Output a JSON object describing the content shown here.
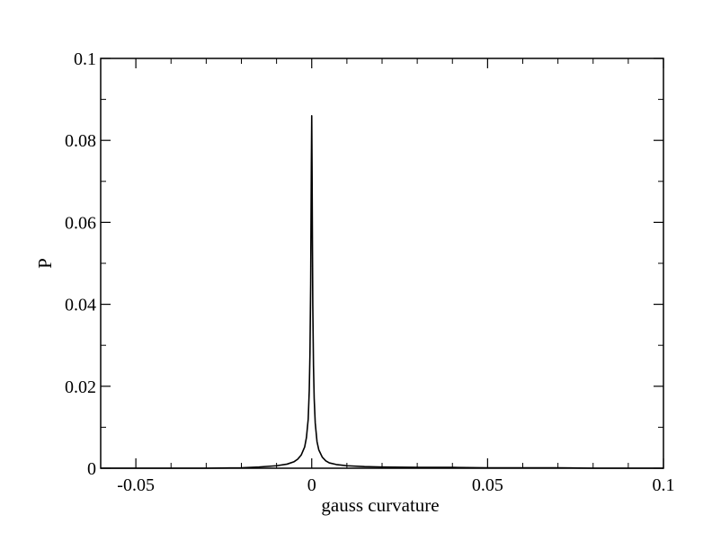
{
  "chart_data": {
    "type": "line",
    "title": "",
    "xlabel": "gauss curvature",
    "ylabel": "P",
    "xlim": [
      -0.06,
      0.1
    ],
    "ylim": [
      0,
      0.1
    ],
    "grid": false,
    "legend": "none",
    "x_ticks": [
      {
        "value": -0.05,
        "label": "-0.05"
      },
      {
        "value": 0,
        "label": "0"
      },
      {
        "value": 0.05,
        "label": "0.05"
      },
      {
        "value": 0.1,
        "label": "0.1"
      }
    ],
    "y_ticks": [
      {
        "value": 0,
        "label": "0"
      },
      {
        "value": 0.02,
        "label": "0.02"
      },
      {
        "value": 0.04,
        "label": "0.04"
      },
      {
        "value": 0.06,
        "label": "0.06"
      },
      {
        "value": 0.08,
        "label": "0.08"
      },
      {
        "value": 0.1,
        "label": "0.1"
      }
    ],
    "x_minor_step": 0.01,
    "y_minor_step": 0.01,
    "series": [
      {
        "color": "#000000",
        "x": [
          -0.06,
          -0.05,
          -0.04,
          -0.03,
          -0.02,
          -0.015,
          -0.01,
          -0.007,
          -0.005,
          -0.004,
          -0.003,
          -0.002,
          -0.0015,
          -0.001,
          -0.0007,
          -0.0005,
          -0.0003,
          -0.0002,
          -0.0001,
          0,
          0.0001,
          0.0002,
          0.0003,
          0.0005,
          0.0007,
          0.001,
          0.0015,
          0.002,
          0.003,
          0.004,
          0.005,
          0.007,
          0.01,
          0.015,
          0.02,
          0.03,
          0.04,
          0.05,
          0.06,
          0.07,
          0.08,
          0.09,
          0.1
        ],
        "y": [
          0,
          0,
          0,
          0,
          0.0001,
          0.0003,
          0.0006,
          0.001,
          0.0016,
          0.0022,
          0.0032,
          0.0052,
          0.0075,
          0.012,
          0.019,
          0.028,
          0.045,
          0.06,
          0.075,
          0.086,
          0.072,
          0.055,
          0.04,
          0.025,
          0.017,
          0.011,
          0.0065,
          0.0045,
          0.0027,
          0.0018,
          0.0013,
          0.0009,
          0.0006,
          0.0004,
          0.0003,
          0.0002,
          0.0002,
          0.0001,
          0.0001,
          0.0001,
          0,
          0,
          0
        ]
      }
    ]
  }
}
